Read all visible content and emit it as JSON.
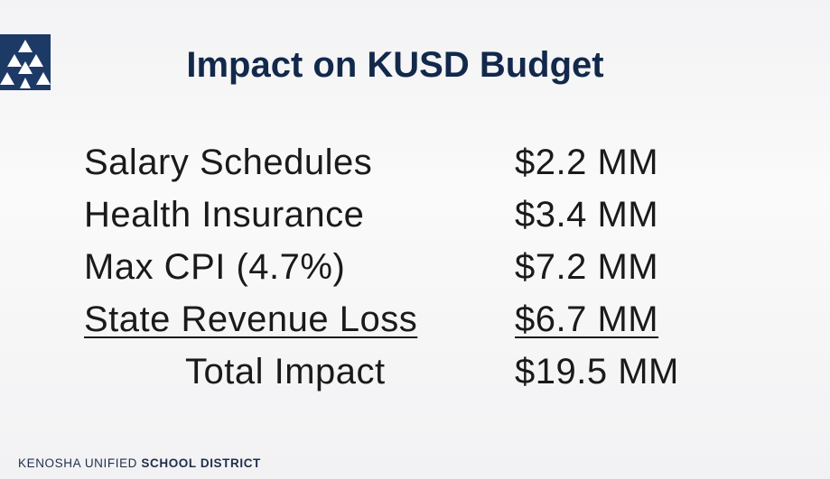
{
  "header": {
    "title": "Impact on KUSD Budget"
  },
  "rows": [
    {
      "label": "Salary Schedules",
      "amount": "$2.2 MM"
    },
    {
      "label": "Health Insurance",
      "amount": "$3.4 MM"
    },
    {
      "label": "Max CPI (4.7%)",
      "amount": "$7.2 MM"
    },
    {
      "label": "State Revenue Loss",
      "amount": "$6.7 MM"
    }
  ],
  "total": {
    "label": "Total Impact",
    "amount": "$19.5 MM"
  },
  "footer": {
    "name": "KENOSHA UNIFIED",
    "name_bold": "SCHOOL DISTRICT"
  }
}
